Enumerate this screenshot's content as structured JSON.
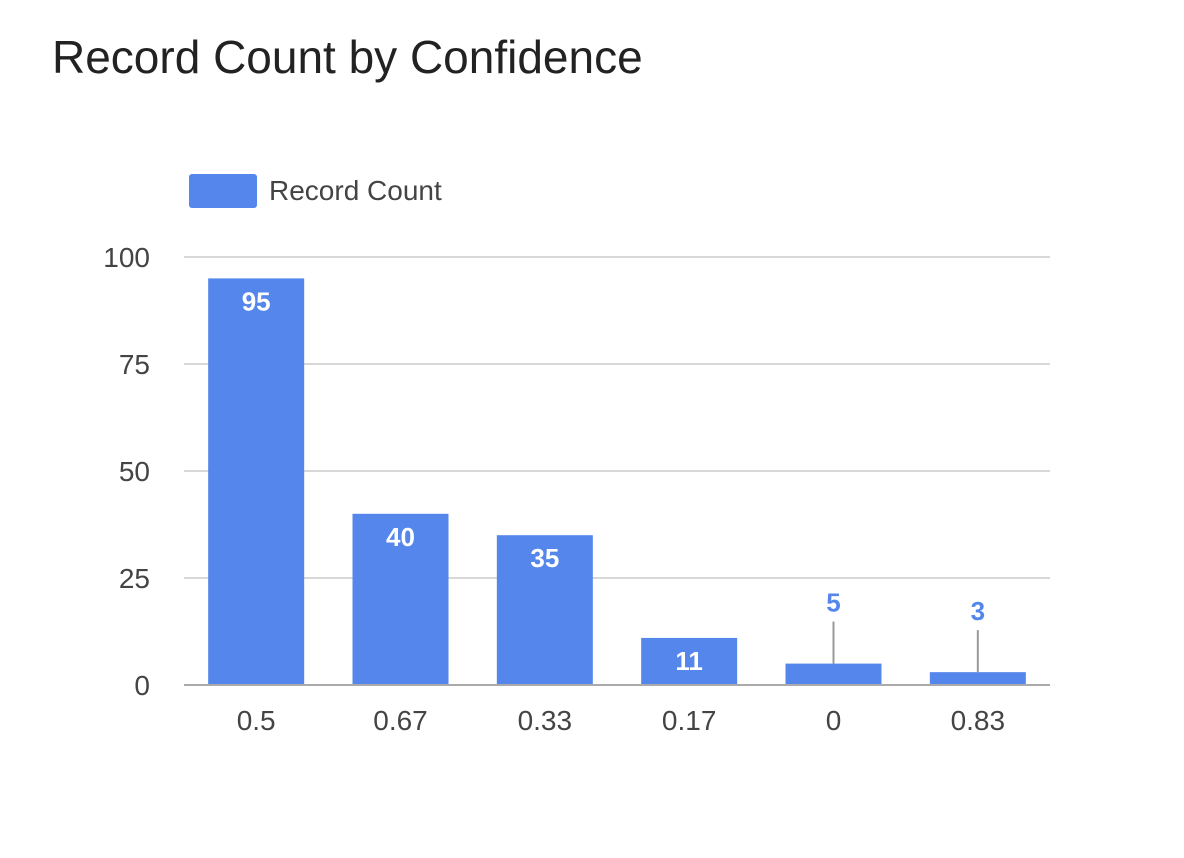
{
  "chart_data": {
    "type": "bar",
    "title": "Record Count by Confidence",
    "xlabel": "",
    "ylabel": "",
    "categories": [
      "0.5",
      "0.67",
      "0.33",
      "0.17",
      "0",
      "0.83"
    ],
    "series": [
      {
        "name": "Record Count",
        "values": [
          95,
          40,
          35,
          11,
          5,
          3
        ],
        "data_labels": [
          "95",
          "40",
          "35",
          "11",
          "5",
          "3"
        ],
        "color": "#5486ec"
      }
    ],
    "ylim": [
      0,
      100
    ],
    "yticks": [
      "0",
      "25",
      "50",
      "75",
      "100"
    ],
    "grid": true,
    "legend_position": "top-left"
  }
}
